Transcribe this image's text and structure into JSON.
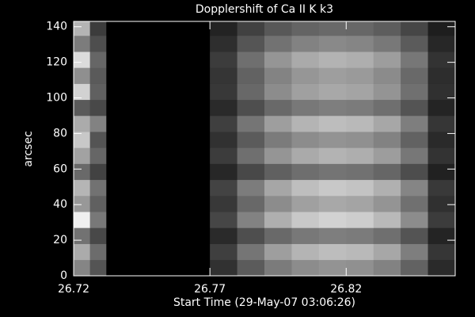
{
  "chart_data": {
    "type": "heatmap",
    "title": "Dopplershift of Ca II K k3",
    "xlabel": "Start Time (29-May-07 03:06:26)",
    "ylabel": "arcsec",
    "colormap": "gray",
    "zlim": [
      0,
      255
    ],
    "xlim": [
      26.72,
      26.86
    ],
    "ylim": [
      0,
      143
    ],
    "xticks": [
      26.72,
      26.77,
      26.82
    ],
    "yticks": [
      0,
      20,
      40,
      60,
      80,
      100,
      120,
      140
    ],
    "xedges": [
      26.72,
      26.726,
      26.732,
      26.77,
      26.78,
      26.79,
      26.8,
      26.81,
      26.82,
      26.83,
      26.84,
      26.85,
      26.86
    ],
    "yedges": [
      0,
      9,
      18,
      27,
      36,
      45,
      54,
      63,
      72,
      81,
      90,
      99,
      108,
      117,
      126,
      135,
      143
    ],
    "z": [
      [
        133,
        84,
        0,
        49,
        91,
        123,
        140,
        147,
        144,
        130,
        98,
        42
      ],
      [
        171,
        108,
        0,
        63,
        117,
        158,
        180,
        189,
        185,
        167,
        126,
        54
      ],
      [
        114,
        72,
        0,
        42,
        78,
        105,
        120,
        126,
        123,
        111,
        84,
        36
      ],
      [
        240,
        120,
        0,
        70,
        130,
        175,
        200,
        210,
        205,
        185,
        140,
        60
      ],
      [
        152,
        96,
        0,
        56,
        104,
        140,
        160,
        168,
        164,
        148,
        112,
        48
      ],
      [
        181,
        114,
        0,
        67,
        124,
        166,
        190,
        200,
        195,
        176,
        133,
        57
      ],
      [
        105,
        66,
        0,
        39,
        72,
        96,
        110,
        116,
        113,
        102,
        77,
        33
      ],
      [
        162,
        102,
        0,
        60,
        111,
        149,
        170,
        179,
        174,
        157,
        119,
        51
      ],
      [
        200,
        84,
        0,
        49,
        91,
        123,
        140,
        147,
        144,
        130,
        98,
        42
      ],
      [
        171,
        130,
        0,
        63,
        117,
        158,
        180,
        189,
        185,
        167,
        126,
        54
      ],
      [
        90,
        72,
        0,
        42,
        78,
        105,
        120,
        126,
        123,
        111,
        84,
        36
      ],
      [
        210,
        96,
        0,
        56,
        104,
        140,
        160,
        168,
        164,
        148,
        112,
        48
      ],
      [
        143,
        90,
        0,
        53,
        98,
        131,
        150,
        158,
        154,
        139,
        105,
        45
      ],
      [
        220,
        102,
        0,
        60,
        111,
        149,
        170,
        179,
        174,
        157,
        119,
        51
      ],
      [
        124,
        78,
        0,
        46,
        85,
        114,
        130,
        137,
        133,
        120,
        91,
        39
      ],
      [
        180,
        60,
        0,
        35,
        65,
        88,
        100,
        105,
        103,
        93,
        70,
        30
      ]
    ]
  }
}
